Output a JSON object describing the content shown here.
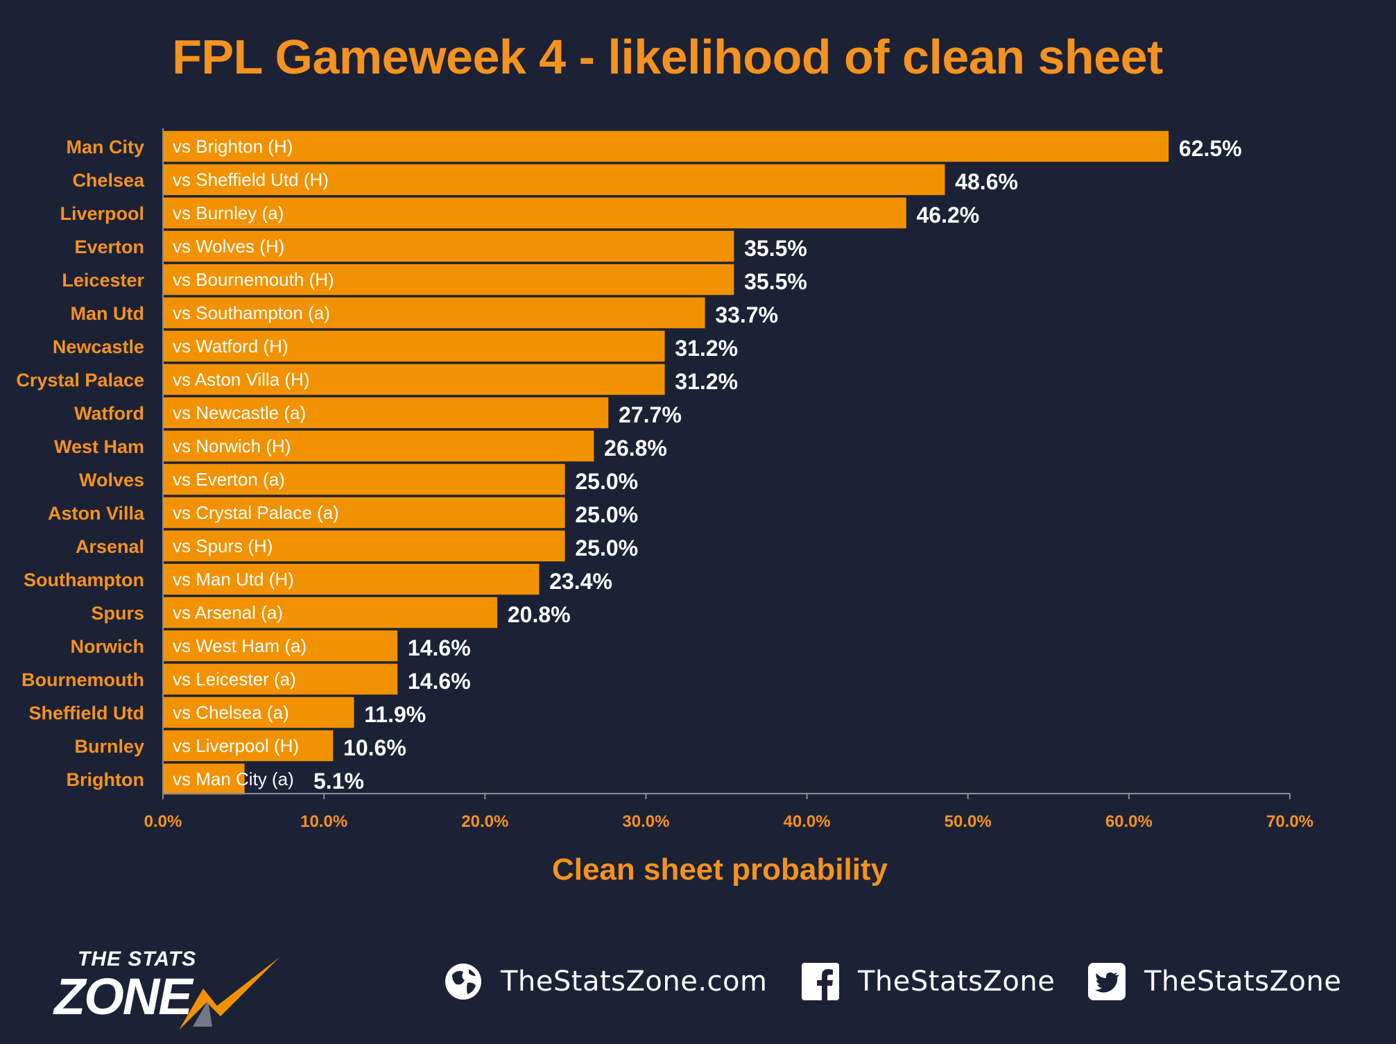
{
  "colors": {
    "background": "#1c2236",
    "accent": "#f6921e",
    "bar": "#f39200",
    "bar_border": "#1c2236",
    "value_text": "#ffffff",
    "axis": "#8c8f99"
  },
  "chart_data": {
    "type": "bar",
    "orientation": "horizontal",
    "title": "FPL Gameweek 4 - likelihood of clean sheet",
    "xlabel": "Clean sheet probability",
    "ylabel": "",
    "xlim": [
      0,
      70
    ],
    "x_ticks": [
      "0.0%",
      "10.0%",
      "20.0%",
      "30.0%",
      "40.0%",
      "50.0%",
      "60.0%",
      "70.0%"
    ],
    "grid": false,
    "legend": "none",
    "categories": [
      "Man City",
      "Chelsea",
      "Liverpool",
      "Everton",
      "Leicester",
      "Man Utd",
      "Newcastle",
      "Crystal Palace",
      "Watford",
      "West Ham",
      "Wolves",
      "Aston Villa",
      "Arsenal",
      "Southampton",
      "Spurs",
      "Norwich",
      "Bournemouth",
      "Sheffield Utd",
      "Burnley",
      "Brighton"
    ],
    "fixtures": [
      "vs Brighton (H)",
      "vs Sheffield Utd (H)",
      "vs Burnley (a)",
      "vs Wolves (H)",
      "vs Bournemouth (H)",
      "vs Southampton (a)",
      "vs Watford (H)",
      "vs Aston Villa (H)",
      "vs Newcastle (a)",
      "vs Norwich (H)",
      "vs Everton (a)",
      "vs Crystal Palace (a)",
      "vs Spurs (H)",
      "vs Man Utd (H)",
      "vs Arsenal (a)",
      "vs West Ham (a)",
      "vs Leicester (a)",
      "vs Chelsea (a)",
      "vs Liverpool (H)",
      "vs Man City (a)"
    ],
    "values": [
      62.5,
      48.6,
      46.2,
      35.5,
      35.5,
      33.7,
      31.2,
      31.2,
      27.7,
      26.8,
      25.0,
      25.0,
      25.0,
      23.4,
      20.8,
      14.6,
      14.6,
      11.9,
      10.6,
      5.1
    ],
    "value_labels": [
      "62.5%",
      "48.6%",
      "46.2%",
      "35.5%",
      "35.5%",
      "33.7%",
      "31.2%",
      "31.2%",
      "27.7%",
      "26.8%",
      "25.0%",
      "25.0%",
      "25.0%",
      "23.4%",
      "20.8%",
      "14.6%",
      "14.6%",
      "11.9%",
      "10.6%",
      "5.1%"
    ]
  },
  "footer": {
    "logo_top": "THE STATS",
    "logo_bottom": "ZONE",
    "links": [
      {
        "icon": "globe-icon",
        "label": "TheStatsZone.com"
      },
      {
        "icon": "facebook-icon",
        "label": "TheStatsZone"
      },
      {
        "icon": "twitter-icon",
        "label": "TheStatsZone"
      }
    ]
  }
}
